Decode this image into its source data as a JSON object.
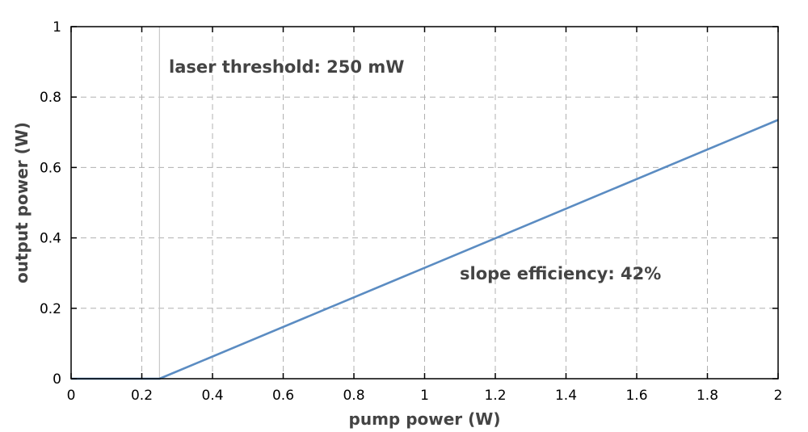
{
  "chart_data": {
    "type": "line",
    "title": "",
    "xlabel": "pump power (W)",
    "ylabel": "output power (W)",
    "xlim": [
      0,
      2
    ],
    "ylim": [
      0,
      1
    ],
    "grid": true,
    "x_ticks": [
      0,
      0.2,
      0.4,
      0.6,
      0.8,
      1,
      1.2,
      1.4,
      1.6,
      1.8,
      2
    ],
    "x_tick_labels": [
      "0",
      "0.2",
      "0.4",
      "0.6",
      "0.8",
      "1",
      "1.2",
      "1.4",
      "1.6",
      "1.8",
      "2"
    ],
    "y_ticks": [
      0,
      0.2,
      0.4,
      0.6,
      0.8,
      1
    ],
    "y_tick_labels": [
      "0",
      "0.2",
      "0.4",
      "0.6",
      "0.8",
      "1"
    ],
    "series": [
      {
        "color": "#5b8cc2",
        "x": [
          0,
          0.25,
          0.5,
          0.75,
          1.0,
          1.25,
          1.5,
          1.75,
          2.0
        ],
        "y": [
          0,
          0,
          0.105,
          0.21,
          0.315,
          0.42,
          0.525,
          0.63,
          0.735
        ]
      }
    ],
    "reference_lines": [
      {
        "orientation": "vertical",
        "x": 0.25,
        "color": "#c8c8c8"
      }
    ],
    "annotations": [
      {
        "text": "laser threshold: 250 mW"
      },
      {
        "text": "slope efficiency: 42%"
      }
    ]
  }
}
